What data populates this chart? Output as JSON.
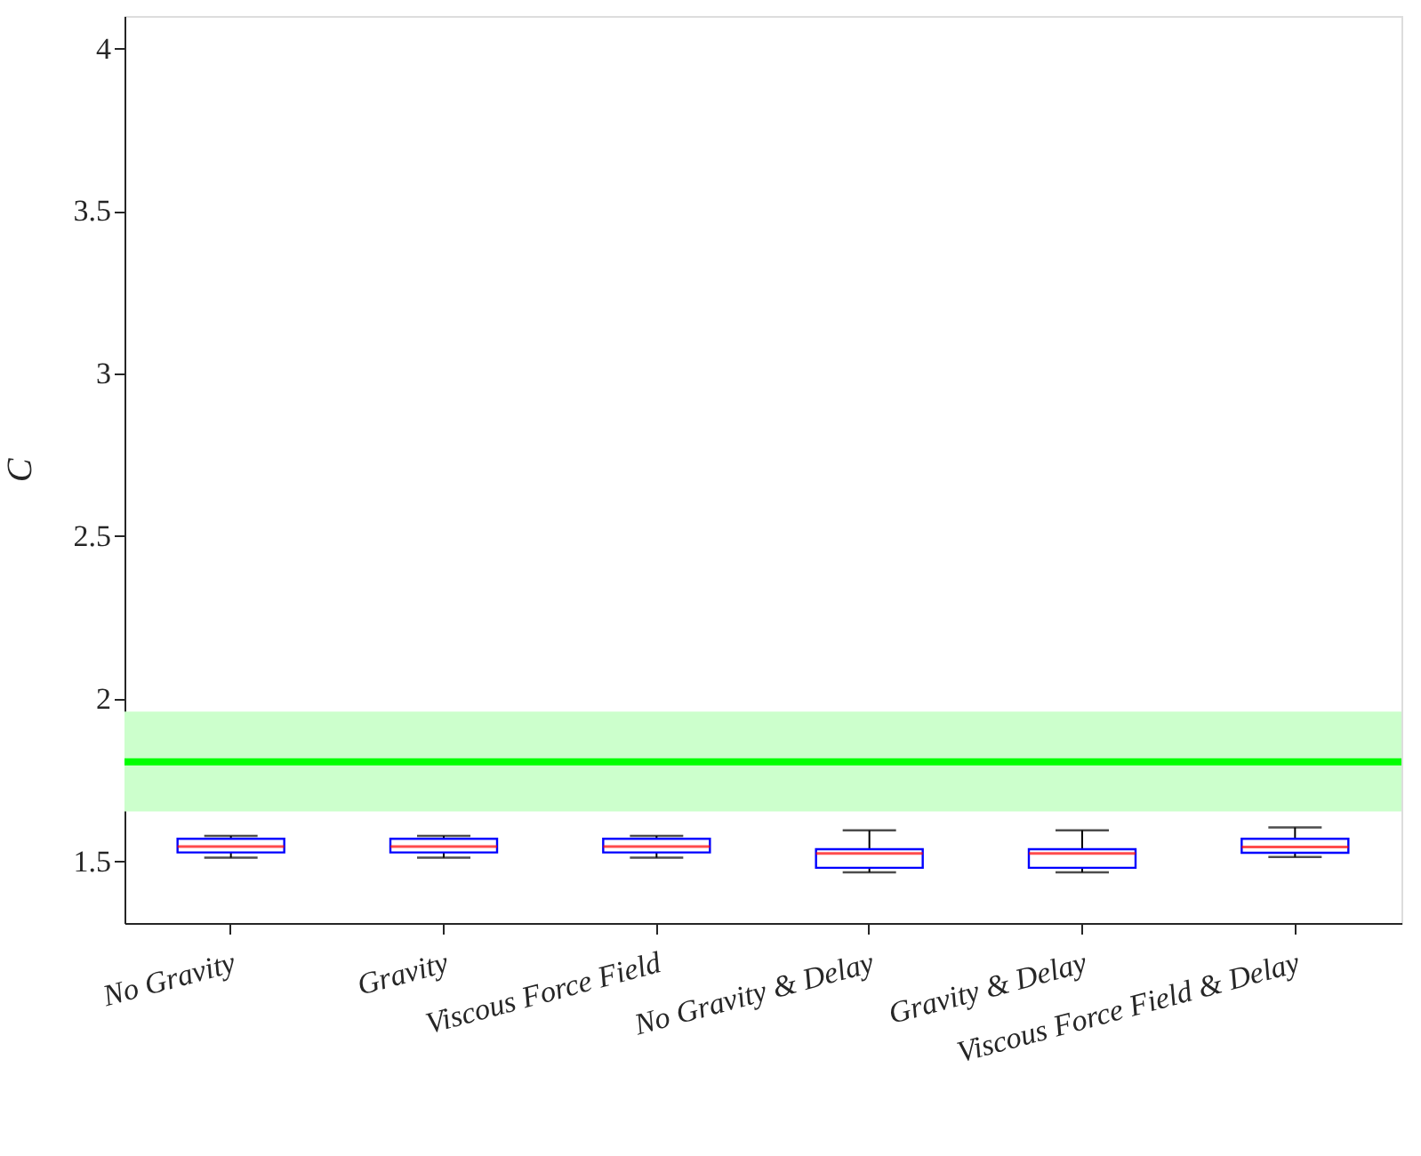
{
  "chart_data": {
    "type": "box",
    "ylabel": "C",
    "categories": [
      "No Gravity",
      "Gravity",
      "Viscous Force Field",
      "No Gravity & Delay",
      "Gravity & Delay",
      "Viscous Force Field & Delay"
    ],
    "boxes": [
      {
        "low": 1.511,
        "q1": 1.527,
        "median": 1.545,
        "q3": 1.569,
        "high": 1.578
      },
      {
        "low": 1.511,
        "q1": 1.527,
        "median": 1.545,
        "q3": 1.569,
        "high": 1.578
      },
      {
        "low": 1.511,
        "q1": 1.527,
        "median": 1.545,
        "q3": 1.569,
        "high": 1.578
      },
      {
        "low": 1.466,
        "q1": 1.48,
        "median": 1.524,
        "q3": 1.537,
        "high": 1.595
      },
      {
        "low": 1.466,
        "q1": 1.48,
        "median": 1.524,
        "q3": 1.537,
        "high": 1.595
      },
      {
        "low": 1.513,
        "q1": 1.526,
        "median": 1.544,
        "q3": 1.569,
        "high": 1.604
      }
    ],
    "color": "#0000ff",
    "ylim": [
      1.31,
      4.1
    ],
    "yticks": [
      1.5,
      2,
      2.5,
      3,
      3.5,
      4
    ],
    "ref_lines": [
      {
        "axis": "y",
        "value": 1.806,
        "color": "#00ff00"
      }
    ],
    "bands": [
      {
        "axis": "y",
        "from": 1.653,
        "to": 1.96,
        "color": "#ccffcc"
      }
    ],
    "grid": false
  }
}
